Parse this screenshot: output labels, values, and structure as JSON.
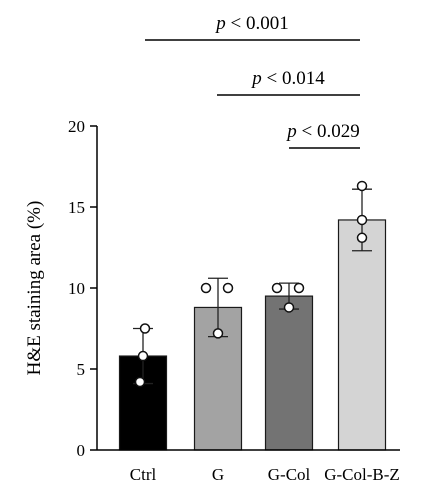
{
  "chart_data": {
    "type": "bar",
    "title": "",
    "xlabel": "",
    "ylabel": "H&E staining area (%)",
    "ylim": [
      0,
      20
    ],
    "yticks": [
      "0",
      "5",
      "10",
      "15",
      "20"
    ],
    "categories": [
      "Ctrl",
      "G",
      "G-Col",
      "G-Col-B-Z"
    ],
    "values": [
      5.8,
      8.8,
      9.5,
      14.2
    ],
    "errors": [
      1.7,
      1.8,
      0.8,
      1.9
    ],
    "points": [
      [
        7.5,
        5.8,
        4.2
      ],
      [
        10.0,
        10.0,
        7.2
      ],
      [
        10.0,
        10.0,
        8.8
      ],
      [
        16.3,
        14.2,
        13.1
      ]
    ],
    "colors": [
      "#000000",
      "#a3a3a3",
      "#737373",
      "#d4d4d4"
    ],
    "significance": [
      {
        "from": 0,
        "to": 3,
        "p_symbol": "p",
        "text": " < 0.001"
      },
      {
        "from": 1,
        "to": 3,
        "p_symbol": "p",
        "text": " < 0.014"
      },
      {
        "from": 2,
        "to": 3,
        "p_symbol": "p",
        "text": " < 0.029"
      }
    ]
  }
}
